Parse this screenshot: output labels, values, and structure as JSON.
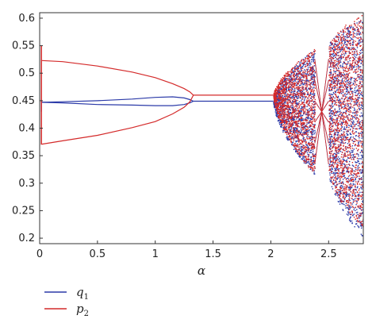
{
  "chart_data": {
    "type": "scatter",
    "title": "",
    "xlabel": "α",
    "ylabel": "",
    "xlim": [
      0,
      2.8
    ],
    "ylim": [
      0.19,
      0.61
    ],
    "xticks": [
      0,
      0.5,
      1,
      1.5,
      2,
      2.5
    ],
    "xtick_labels": [
      "0",
      "0.5",
      "1",
      "1.5",
      "2",
      "2.5"
    ],
    "yticks": [
      0.2,
      0.25,
      0.3,
      0.35,
      0.4,
      0.45,
      0.5,
      0.55,
      0.6
    ],
    "ytick_labels": [
      "0.2",
      "0.25",
      "0.3",
      "0.35",
      "0.4",
      "0.45",
      "0.5",
      "0.55",
      "0.6"
    ],
    "grid": false,
    "legend_position": "below-left",
    "series": [
      {
        "name": "q1",
        "color": "#2b3aa8",
        "branches": [
          {
            "x": [
              0.02,
              0.2,
              0.5,
              0.8,
              1.0,
              1.15,
              1.25,
              1.3,
              1.33
            ],
            "y": [
              0.447,
              0.448,
              0.45,
              0.453,
              0.456,
              0.457,
              0.455,
              0.452,
              0.449
            ]
          },
          {
            "x": [
              0.02,
              0.2,
              0.5,
              0.8,
              1.0,
              1.15,
              1.25,
              1.3,
              1.33
            ],
            "y": [
              0.447,
              0.446,
              0.443,
              0.442,
              0.441,
              0.441,
              0.443,
              0.446,
              0.449
            ]
          },
          {
            "x": [
              1.33,
              1.6,
              2.02
            ],
            "y": [
              0.449,
              0.449,
              0.449
            ]
          }
        ],
        "chaos_bands": [
          {
            "x": [
              2.02,
              2.38
            ],
            "y_bottom": [
              0.449,
              0.315
            ],
            "y_top": [
              0.449,
              0.545
            ]
          },
          {
            "x": [
              2.5,
              2.8
            ],
            "y_bottom": [
              0.32,
              0.2
            ],
            "y_top": [
              0.55,
              0.6
            ]
          }
        ],
        "periodic_window": {
          "x": [
            2.38,
            2.5
          ],
          "y": [
            0.315,
            0.545
          ]
        }
      },
      {
        "name": "p2",
        "color": "#d42a2a",
        "branches": [
          {
            "x": [
              0.02,
              0.2,
              0.5,
              0.8,
              1.0,
              1.15,
              1.25,
              1.3,
              1.33
            ],
            "y": [
              0.523,
              0.521,
              0.513,
              0.502,
              0.492,
              0.481,
              0.472,
              0.466,
              0.46
            ]
          },
          {
            "x": [
              0.02,
              0.2,
              0.5,
              0.8,
              1.0,
              1.15,
              1.25,
              1.3,
              1.33
            ],
            "y": [
              0.371,
              0.377,
              0.387,
              0.401,
              0.412,
              0.426,
              0.438,
              0.448,
              0.46
            ]
          },
          {
            "x": [
              1.33,
              1.6,
              2.02
            ],
            "y": [
              0.46,
              0.46,
              0.46
            ]
          }
        ],
        "chaos_bands": [
          {
            "x": [
              2.02,
              2.38
            ],
            "y_bottom": [
              0.46,
              0.315
            ],
            "y_top": [
              0.46,
              0.545
            ]
          },
          {
            "x": [
              2.5,
              2.8
            ],
            "y_bottom": [
              0.32,
              0.22
            ],
            "y_top": [
              0.55,
              0.61
            ]
          }
        ],
        "periodic_window": {
          "x": [
            2.38,
            2.5
          ],
          "y": [
            0.315,
            0.545
          ]
        }
      }
    ]
  },
  "legend": {
    "q1_base": "q",
    "q1_sub": "1",
    "p2_base": "p",
    "p2_sub": "2"
  }
}
